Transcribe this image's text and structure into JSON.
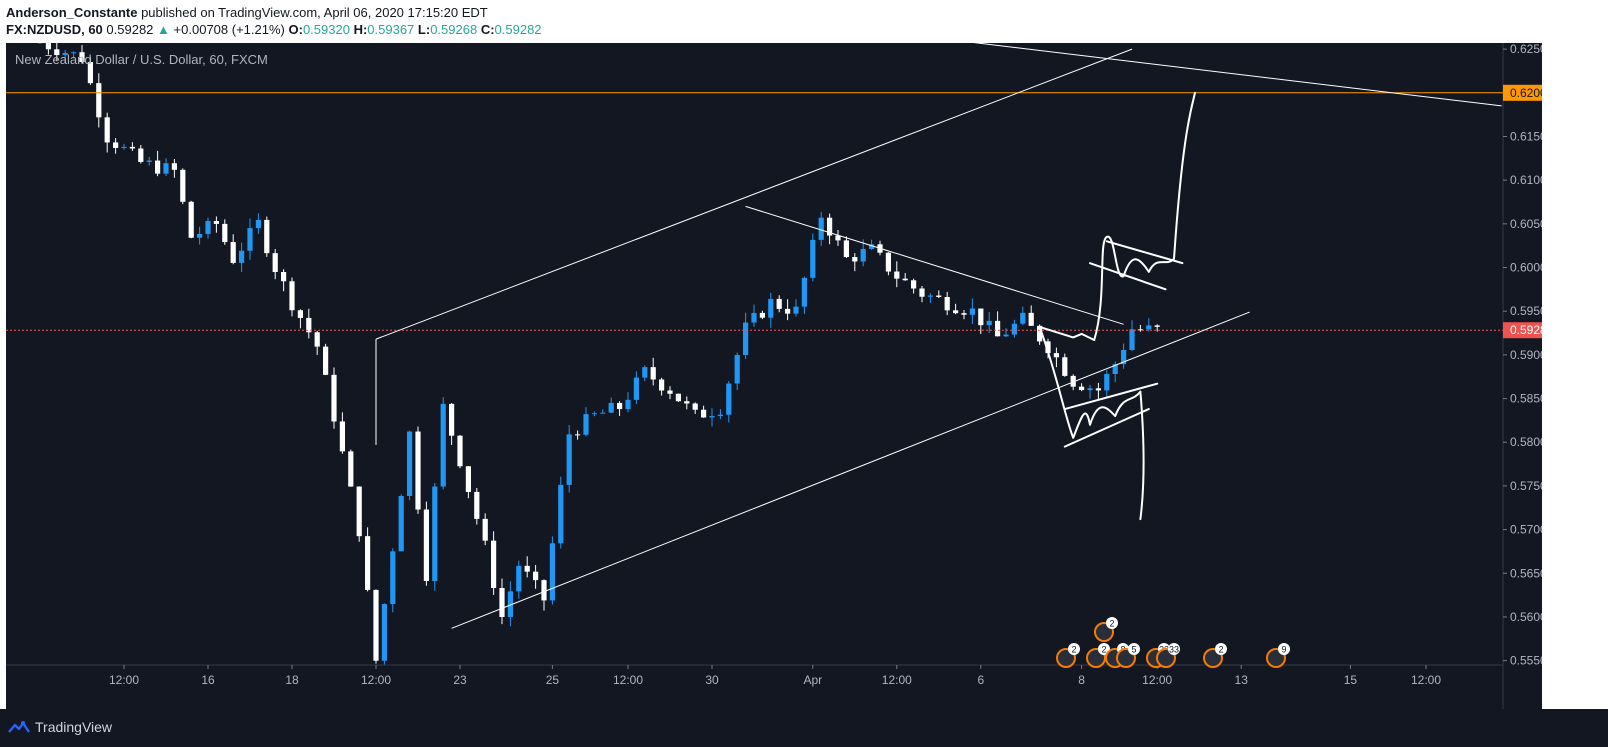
{
  "header": {
    "author": "Anderson_Constante",
    "published_text": " published on TradingView.com, April 06, 2020 17:15:20 EDT",
    "symbol": "FX:NZDUSD, 60",
    "last_price": "0.59282",
    "change_arrow": "▲",
    "change": "+0.00708 (+1.21%)",
    "o_label": "O:",
    "o_value": "0.59320",
    "h_label": "H:",
    "h_value": "0.59367",
    "l_label": "L:",
    "l_value": "0.59268",
    "c_label": "C:",
    "c_value": "0.59282"
  },
  "footer": {
    "brand": "TradingView",
    "logo_icon": "tradingview-logo-icon"
  },
  "colors": {
    "background": "#131722",
    "grid": "#2a2e39",
    "up_candle": "#2196f3",
    "down_candle": "#ffffff",
    "resistance": "#ff9800",
    "current_price": "#ef5350",
    "drawing": "#ffffff"
  },
  "chart_data": {
    "type": "candlestick",
    "title": "New Zealand Dollar / U.S. Dollar, 60, FXCM",
    "ylim": [
      0.5545,
      0.6257
    ],
    "y_ticks": [
      "0.62500",
      "0.62000",
      "0.61500",
      "0.61000",
      "0.60500",
      "0.60000",
      "0.59500",
      "0.59000",
      "0.58500",
      "0.58000",
      "0.57500",
      "0.57000",
      "0.56500",
      "0.56000",
      "0.55500"
    ],
    "x_ticks": [
      "12:00",
      "16",
      "18",
      "12:00",
      "23",
      "25",
      "12:00",
      "30",
      "Apr",
      "12:00",
      "6",
      "8",
      "12:00",
      "13",
      "15",
      "12:00"
    ],
    "x_tick_index": [
      10,
      20,
      30,
      40,
      50,
      61,
      70,
      80,
      92,
      102,
      112,
      124,
      133,
      143,
      156,
      165
    ],
    "bar_count": 167,
    "price_path_anchors": [
      [
        0,
        0.6258
      ],
      [
        5,
        0.624
      ],
      [
        8,
        0.615
      ],
      [
        12,
        0.612
      ],
      [
        16,
        0.611
      ],
      [
        18,
        0.6035
      ],
      [
        21,
        0.605
      ],
      [
        23,
        0.601
      ],
      [
        26,
        0.605
      ],
      [
        28,
        0.6
      ],
      [
        30,
        0.596
      ],
      [
        33,
        0.591
      ],
      [
        35,
        0.583
      ],
      [
        38,
        0.57
      ],
      [
        40,
        0.555
      ],
      [
        42,
        0.568
      ],
      [
        44,
        0.581
      ],
      [
        46,
        0.565
      ],
      [
        48,
        0.584
      ],
      [
        50,
        0.578
      ],
      [
        53,
        0.568
      ],
      [
        55,
        0.56
      ],
      [
        57,
        0.566
      ],
      [
        60,
        0.562
      ],
      [
        63,
        0.581
      ],
      [
        66,
        0.583
      ],
      [
        69,
        0.584
      ],
      [
        72,
        0.588
      ],
      [
        75,
        0.586
      ],
      [
        78,
        0.583
      ],
      [
        81,
        0.584
      ],
      [
        84,
        0.593
      ],
      [
        87,
        0.596
      ],
      [
        90,
        0.595
      ],
      [
        93,
        0.606
      ],
      [
        96,
        0.601
      ],
      [
        99,
        0.602
      ],
      [
        102,
        0.599
      ],
      [
        105,
        0.597
      ],
      [
        108,
        0.596
      ],
      [
        111,
        0.595
      ],
      [
        114,
        0.592
      ],
      [
        117,
        0.594
      ],
      [
        120,
        0.591
      ],
      [
        123,
        0.587
      ],
      [
        126,
        0.586
      ],
      [
        128,
        0.589
      ],
      [
        130,
        0.593
      ],
      [
        133,
        0.5928
      ]
    ],
    "resistance_level": 0.62,
    "resistance_label": "0.62000",
    "current_price": 0.59282,
    "current_price_label": "0.59282",
    "event_badges": [
      "2",
      "2",
      "2",
      "8",
      "5",
      "23",
      "33",
      "2",
      "9"
    ]
  }
}
